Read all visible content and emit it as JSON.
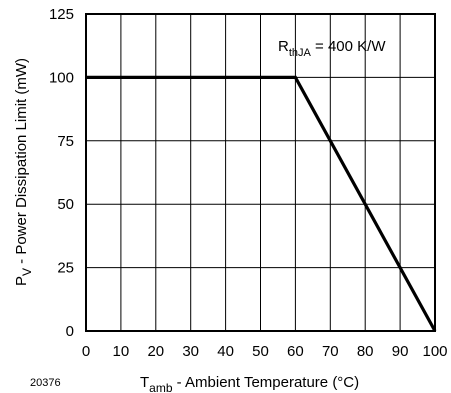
{
  "chart_data": {
    "type": "line",
    "x": [
      0,
      60,
      100
    ],
    "series": [
      {
        "values": [
          100,
          100,
          0
        ],
        "color": "#000000"
      }
    ],
    "xlim": [
      0,
      100
    ],
    "ylim": [
      0,
      125
    ],
    "xticks": [
      "0",
      "10",
      "20",
      "30",
      "40",
      "50",
      "60",
      "70",
      "80",
      "90",
      "100"
    ],
    "yticks": [
      "0",
      "25",
      "50",
      "75",
      "100",
      "125"
    ],
    "xlabel": {
      "main": "T",
      "sub": "amb",
      "rest": " - Ambient Temperature (°C)"
    },
    "ylabel": {
      "main": "P",
      "sub": "V",
      "rest": " - Power Dissipation Limit (mW)"
    },
    "annotation": {
      "main": "R",
      "sub": "thJA",
      "rest": " = 400 K/W"
    },
    "figure_id": "20376",
    "grid": true
  }
}
